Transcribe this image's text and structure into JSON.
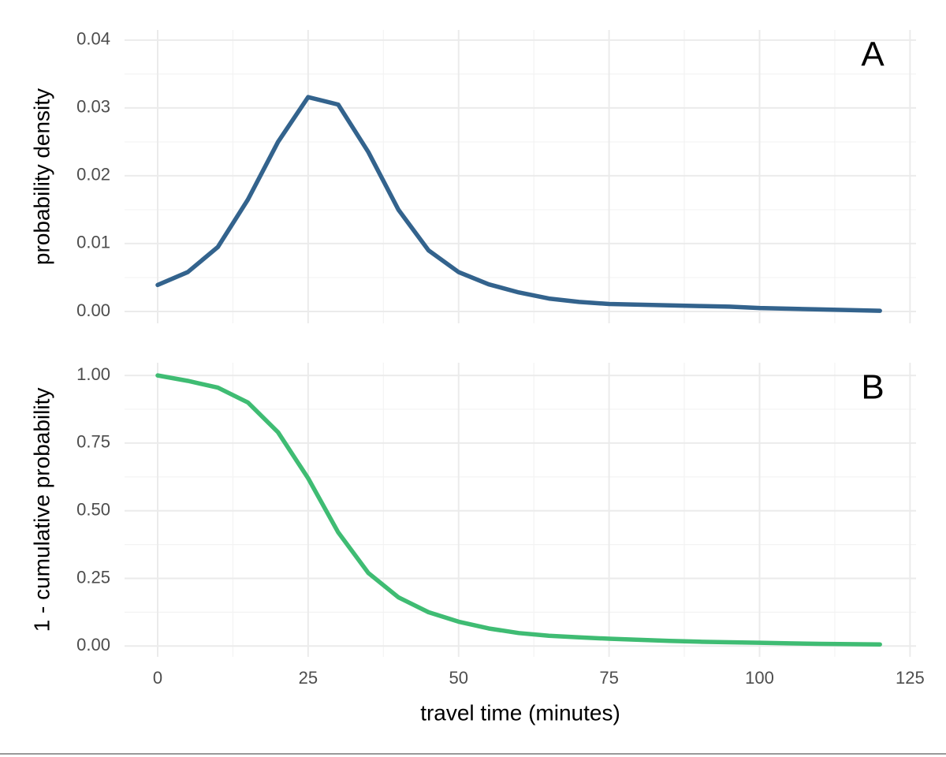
{
  "chart_data": [
    {
      "type": "line",
      "ylabel": "probability density",
      "annotation": "A",
      "x": [
        0,
        5,
        10,
        15,
        20,
        25,
        30,
        35,
        40,
        45,
        50,
        55,
        60,
        65,
        70,
        75,
        80,
        85,
        90,
        95,
        100,
        105,
        110,
        115,
        120
      ],
      "series": [
        {
          "color": "#33638d",
          "values": [
            0.0039,
            0.0058,
            0.0095,
            0.0165,
            0.025,
            0.0316,
            0.0305,
            0.0235,
            0.015,
            0.009,
            0.0058,
            0.004,
            0.0028,
            0.0019,
            0.0014,
            0.0011,
            0.001,
            0.0009,
            0.0008,
            0.0007,
            0.0005,
            0.0004,
            0.0003,
            0.0002,
            0.0001
          ]
        }
      ],
      "xlim": [
        -5.5,
        126
      ],
      "ylim": [
        -0.00175,
        0.0415
      ],
      "yticks": [
        {
          "value": 0,
          "label": "0.00"
        },
        {
          "value": 0.01,
          "label": "0.01"
        },
        {
          "value": 0.02,
          "label": "0.02"
        },
        {
          "value": 0.03,
          "label": "0.03"
        },
        {
          "value": 0.04,
          "label": "0.04"
        }
      ],
      "grid": true
    },
    {
      "type": "line",
      "xlabel": "travel time (minutes)",
      "ylabel": "1 - cumulative probability",
      "annotation": "B",
      "x": [
        0,
        5,
        10,
        15,
        20,
        25,
        30,
        35,
        40,
        45,
        50,
        55,
        60,
        65,
        70,
        75,
        80,
        85,
        90,
        95,
        100,
        105,
        110,
        115,
        120
      ],
      "series": [
        {
          "color": "#3fbc73",
          "values": [
            1.0,
            0.98,
            0.955,
            0.9,
            0.79,
            0.62,
            0.42,
            0.27,
            0.18,
            0.125,
            0.09,
            0.065,
            0.048,
            0.038,
            0.032,
            0.027,
            0.023,
            0.019,
            0.016,
            0.014,
            0.012,
            0.01,
            0.008,
            0.007,
            0.006
          ]
        }
      ],
      "xlim": [
        -5.5,
        126
      ],
      "ylim": [
        -0.04,
        1.047
      ],
      "xticks": [
        0,
        25,
        50,
        75,
        100,
        125
      ],
      "yticks": [
        {
          "value": 0,
          "label": "0.00"
        },
        {
          "value": 0.25,
          "label": "0.25"
        },
        {
          "value": 0.5,
          "label": "0.50"
        },
        {
          "value": 0.75,
          "label": "0.75"
        },
        {
          "value": 1,
          "label": "1.00"
        }
      ],
      "grid": true
    }
  ]
}
